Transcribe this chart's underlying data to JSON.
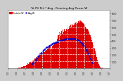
{
  "title": "Tot PV Pnl * Avg - Running Avg Power W",
  "legend1": "Instant.W",
  "legend2": "Avg.W",
  "bg_color": "#cccccc",
  "plot_bg": "#ffffff",
  "bar_color": "#dd0000",
  "avg_color": "#0000cc",
  "ylim": [
    0,
    850
  ],
  "yticks": [
    100,
    200,
    300,
    400,
    500,
    600,
    700,
    800
  ],
  "n_points": 130,
  "bar_values": [
    0,
    0,
    0,
    0,
    0,
    0,
    0,
    0,
    0,
    2,
    3,
    5,
    4,
    6,
    8,
    12,
    10,
    18,
    22,
    28,
    35,
    25,
    45,
    55,
    50,
    70,
    65,
    80,
    90,
    85,
    100,
    115,
    110,
    130,
    145,
    140,
    160,
    155,
    175,
    190,
    185,
    205,
    215,
    210,
    230,
    245,
    240,
    260,
    270,
    265,
    285,
    295,
    310,
    320,
    315,
    290,
    330,
    345,
    340,
    360,
    380,
    370,
    390,
    430,
    480,
    520,
    470,
    510,
    540,
    500,
    560,
    530,
    580,
    545,
    570,
    560,
    600,
    580,
    620,
    595,
    640,
    610,
    650,
    625,
    660,
    640,
    670,
    650,
    680,
    660,
    690,
    670,
    695,
    680,
    685,
    670,
    660,
    645,
    630,
    610,
    595,
    575,
    555,
    530,
    505,
    480,
    450,
    415,
    380,
    340,
    300,
    255,
    210,
    165,
    125,
    90,
    60,
    40,
    20,
    10,
    5,
    2,
    0,
    0,
    0,
    0,
    0,
    0,
    0,
    0
  ],
  "avg_values": [
    null,
    null,
    null,
    null,
    null,
    null,
    null,
    null,
    null,
    null,
    null,
    null,
    null,
    null,
    null,
    null,
    null,
    null,
    null,
    null,
    null,
    null,
    null,
    null,
    null,
    null,
    null,
    null,
    null,
    null,
    60,
    70,
    80,
    95,
    110,
    125,
    140,
    155,
    170,
    185,
    200,
    215,
    228,
    240,
    252,
    263,
    274,
    284,
    294,
    303,
    312,
    320,
    328,
    336,
    343,
    349,
    354,
    360,
    365,
    370,
    375,
    380,
    385,
    390,
    395,
    400,
    405,
    408,
    412,
    415,
    418,
    421,
    424,
    426,
    428,
    430,
    432,
    433,
    434,
    435,
    435,
    435,
    435,
    434,
    432,
    430,
    427,
    423,
    418,
    412,
    405,
    397,
    388,
    378,
    367,
    354,
    340,
    325,
    308,
    290,
    270,
    248,
    225,
    200,
    175,
    148,
    122,
    96,
    72,
    null,
    null,
    null,
    null,
    null,
    null,
    null,
    null,
    null,
    null,
    null,
    null,
    null,
    null,
    null,
    null,
    null,
    null,
    null,
    null,
    null
  ],
  "n_vgrid": 13,
  "xlabel_texts": [
    "5/15",
    "5/16",
    "5/17",
    "5/18",
    "5/19",
    "5/20",
    "5/21",
    "5/22",
    "5/23",
    "5/24",
    "5/25",
    "5/26",
    "5/27"
  ]
}
